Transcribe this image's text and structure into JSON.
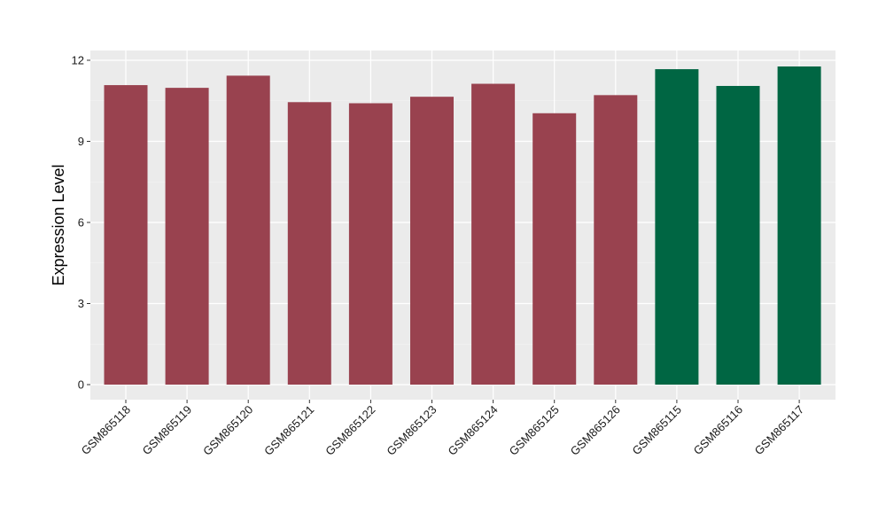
{
  "chart_data": {
    "type": "bar",
    "title": "",
    "xlabel": "",
    "ylabel": "Expression Level",
    "ylim": [
      -0.5,
      12.3
    ],
    "yticks": [
      0,
      3,
      6,
      9,
      12
    ],
    "grid": true,
    "legend": "none",
    "background": "#ebebeb",
    "categories": [
      "GSM865118",
      "GSM865119",
      "GSM865120",
      "GSM865121",
      "GSM865122",
      "GSM865123",
      "GSM865124",
      "GSM865125",
      "GSM865126",
      "GSM865115",
      "GSM865116",
      "GSM865117"
    ],
    "values": [
      11.08,
      10.98,
      11.43,
      10.45,
      10.41,
      10.65,
      11.13,
      10.04,
      10.71,
      11.67,
      11.05,
      11.77
    ],
    "bar_colors": [
      "#99424f",
      "#99424f",
      "#99424f",
      "#99424f",
      "#99424f",
      "#99424f",
      "#99424f",
      "#99424f",
      "#99424f",
      "#006643",
      "#006643",
      "#006643"
    ]
  }
}
